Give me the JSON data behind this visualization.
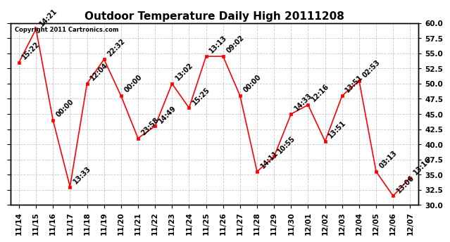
{
  "title": "Outdoor Temperature Daily High 20111208",
  "copyright_text": "Copyright 2011 Cartronics.com",
  "xlabels": [
    "11/14",
    "11/15",
    "11/16",
    "11/17",
    "11/18",
    "11/19",
    "11/20",
    "11/21",
    "11/22",
    "11/23",
    "11/24",
    "11/25",
    "11/26",
    "11/27",
    "11/28",
    "11/29",
    "11/30",
    "12/01",
    "12/02",
    "12/03",
    "12/04",
    "12/05",
    "12/06",
    "12/07"
  ],
  "values": [
    53.5,
    59.0,
    44.0,
    33.0,
    50.0,
    54.0,
    48.0,
    41.0,
    43.0,
    50.0,
    46.0,
    54.5,
    54.5,
    48.0,
    35.5,
    38.0,
    45.0,
    46.5,
    40.5,
    48.0,
    50.5,
    35.5,
    31.5,
    34.5
  ],
  "point_labels": [
    "15:22",
    "14:21",
    "00:00",
    "13:33",
    "12:04",
    "22:32",
    "00:00",
    "23:58",
    "14:49",
    "13:02",
    "15:25",
    "13:13",
    "09:02",
    "00:00",
    "14:11",
    "10:55",
    "14:33",
    "12:16",
    "13:51",
    "13:51",
    "02:53",
    "03:13",
    "13:06",
    "13:16"
  ],
  "ylim": [
    30.0,
    60.0
  ],
  "yticks": [
    30.0,
    32.5,
    35.0,
    37.5,
    40.0,
    42.5,
    45.0,
    47.5,
    50.0,
    52.5,
    55.0,
    57.5,
    60.0
  ],
  "line_color": "red",
  "marker_color": "red",
  "grid_color": "#c8c8c8",
  "bg_color": "#ffffff",
  "plot_bg_color": "#ffffff",
  "title_fontsize": 11,
  "label_fontsize": 7,
  "tick_fontsize": 7.5,
  "copyright_fontsize": 6
}
